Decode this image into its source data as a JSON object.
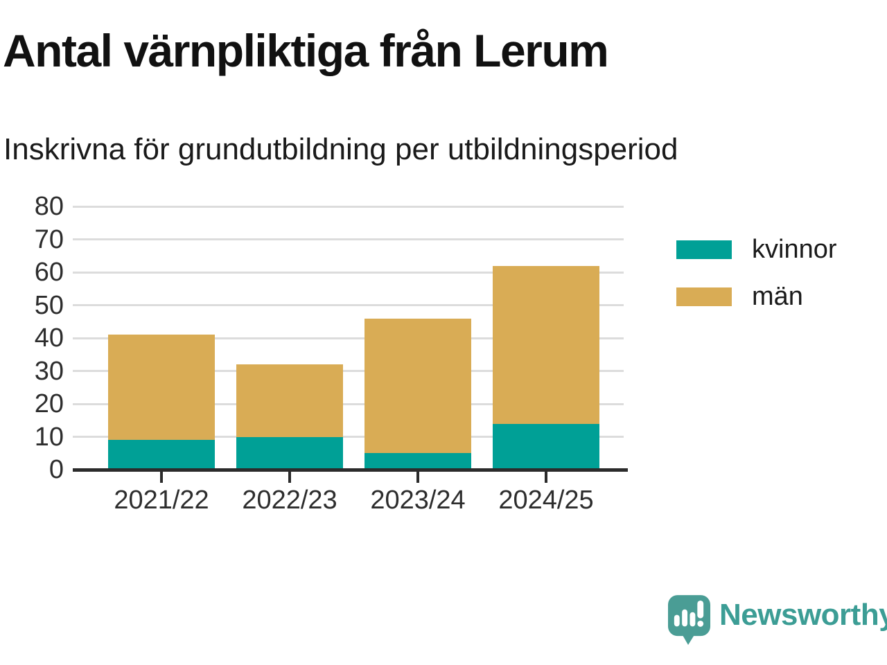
{
  "header": {
    "title": "Antal värnpliktiga från Lerum",
    "subtitle": "Inskrivna för grundutbildning per utbildningsperiod"
  },
  "chart_data": {
    "type": "bar",
    "stacked": true,
    "title": "Antal värnpliktiga från Lerum",
    "subtitle": "Inskrivna för grundutbildning per utbildningsperiod",
    "categories": [
      "2021/22",
      "2022/23",
      "2023/24",
      "2024/25"
    ],
    "series": [
      {
        "name": "kvinnor",
        "color": "#00A096",
        "values": [
          9,
          10,
          5,
          14
        ]
      },
      {
        "name": "män",
        "color": "#D9AC55",
        "values": [
          32,
          22,
          41,
          48
        ]
      }
    ],
    "stacked_totals": [
      41,
      32,
      46,
      62
    ],
    "xlabel": "",
    "ylabel": "",
    "ylim": [
      0,
      80
    ],
    "yticks": [
      0,
      10,
      20,
      30,
      40,
      50,
      60,
      70,
      80
    ],
    "grid": true,
    "legend_position": "right"
  },
  "branding": {
    "logo_text": "Newsworthy",
    "logo_text_color": "#3C9D95",
    "logo_mark_color": "#4A9D95",
    "logo_icon": "newsworthy-speech-bubble-barchart-icon"
  },
  "colors": {
    "background": "#FFFFFF",
    "kvinnor": "#00A096",
    "man": "#D9AC55",
    "gridline": "#DCDCDC",
    "axis": "#2B2B2B",
    "tick_text": "#2D2D2D",
    "title_text": "#111111"
  }
}
